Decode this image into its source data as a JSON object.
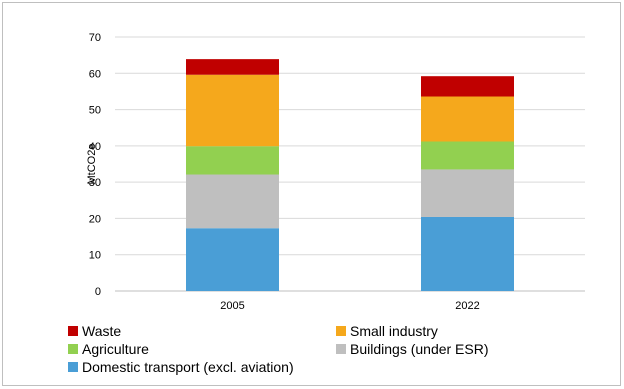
{
  "chart_data": {
    "type": "bar",
    "stacked": true,
    "categories": [
      "2005",
      "2022"
    ],
    "ylabel": "MtCO2e",
    "xlabel": "",
    "title": "",
    "ylim": [
      0,
      70
    ],
    "yticks": [
      0,
      10,
      20,
      30,
      40,
      50,
      60,
      70
    ],
    "grid": true,
    "legend_position": "bottom",
    "series": [
      {
        "name": "Domestic transport (excl. aviation)",
        "color": "#4a9ed6",
        "values": [
          17.3,
          20.4
        ]
      },
      {
        "name": "Buildings (under ESR)",
        "color": "#bfbfbf",
        "values": [
          14.8,
          13.1
        ]
      },
      {
        "name": "Agriculture",
        "color": "#92d050",
        "values": [
          7.8,
          7.7
        ]
      },
      {
        "name": "Small industry",
        "color": "#f5a81c",
        "values": [
          19.7,
          12.4
        ]
      },
      {
        "name": "Waste",
        "color": "#c00000",
        "values": [
          4.3,
          5.6
        ]
      }
    ]
  },
  "legend": {
    "items": [
      {
        "label": "Waste",
        "color": "#c00000"
      },
      {
        "label": "Small industry",
        "color": "#f5a81c"
      },
      {
        "label": "Agriculture",
        "color": "#92d050"
      },
      {
        "label": "Buildings (under ESR)",
        "color": "#bfbfbf"
      },
      {
        "label": "Domestic transport (excl. aviation)",
        "color": "#4a9ed6"
      }
    ]
  }
}
